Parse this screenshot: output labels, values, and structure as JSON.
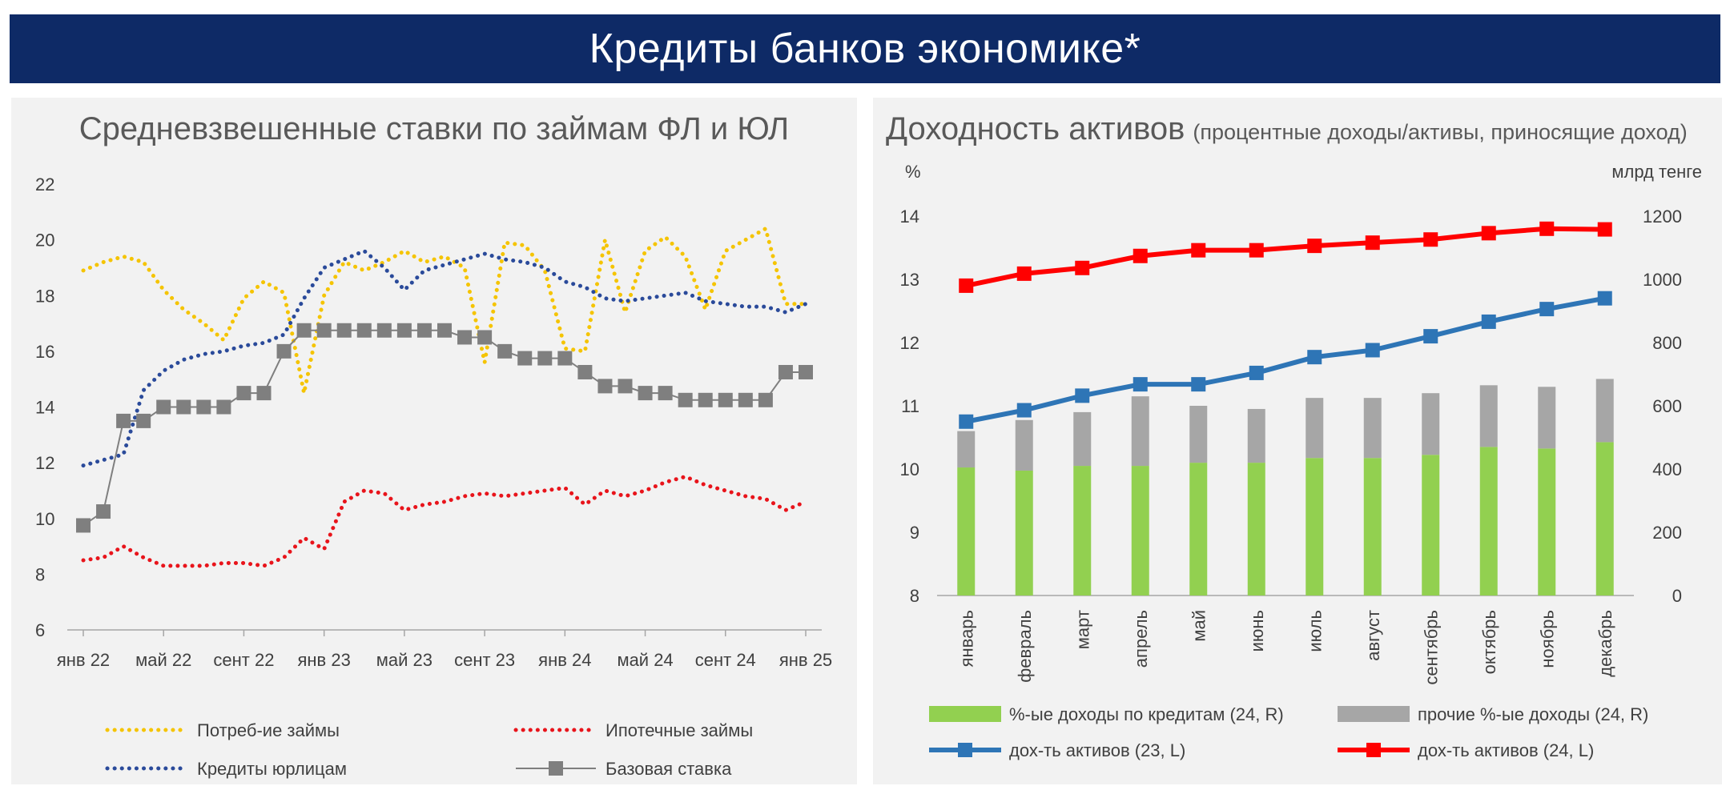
{
  "page": {
    "title": "Кредиты банков экономике*"
  },
  "chart_data": [
    {
      "type": "line",
      "title": "Средневзвешенные ставки по займам ФЛ и ЮЛ",
      "ylim": [
        6,
        22
      ],
      "yticks": [
        6,
        8,
        10,
        12,
        14,
        16,
        18,
        20,
        22
      ],
      "x_tick_labels": [
        "янв 22",
        "май 22",
        "сент 22",
        "янв 23",
        "май 23",
        "сент 23",
        "янв 24",
        "май 24",
        "сент 24",
        "янв 25"
      ],
      "x_tick_positions": [
        0,
        4,
        8,
        12,
        16,
        20,
        24,
        28,
        32,
        36
      ],
      "grid": "none",
      "legend": "bottom",
      "series": [
        {
          "name": "Потреб-ие займы",
          "color": "#f5c400",
          "style": "dotted",
          "values": [
            18.9,
            19.2,
            19.4,
            19.2,
            18.2,
            17.5,
            17.0,
            16.4,
            17.9,
            18.5,
            18.1,
            14.5,
            18.0,
            19.2,
            18.9,
            19.2,
            19.6,
            19.2,
            19.4,
            19.0,
            15.6,
            19.9,
            19.8,
            18.9,
            16.1,
            16.0,
            20.0,
            17.4,
            19.6,
            20.1,
            19.4,
            17.5,
            19.6,
            20.0,
            20.4,
            17.7,
            17.7
          ]
        },
        {
          "name": "Ипотечные займы",
          "color": "#e8141b",
          "style": "dotted",
          "values": [
            8.5,
            8.6,
            9.0,
            8.6,
            8.3,
            8.3,
            8.3,
            8.4,
            8.4,
            8.3,
            8.6,
            9.3,
            8.9,
            10.6,
            11.0,
            10.9,
            10.3,
            10.5,
            10.6,
            10.8,
            10.9,
            10.8,
            10.9,
            11.0,
            11.1,
            10.5,
            11.0,
            10.8,
            11.0,
            11.3,
            11.5,
            11.2,
            11.0,
            10.8,
            10.7,
            10.3,
            10.6
          ]
        },
        {
          "name": "Кредиты юрлицам",
          "color": "#2a4a9a",
          "style": "dotted",
          "values": [
            11.9,
            12.1,
            12.3,
            14.6,
            15.3,
            15.7,
            15.9,
            16.0,
            16.2,
            16.3,
            16.6,
            17.9,
            19.0,
            19.3,
            19.6,
            19.0,
            18.2,
            18.9,
            19.1,
            19.3,
            19.5,
            19.3,
            19.2,
            19.0,
            18.5,
            18.3,
            17.9,
            17.8,
            17.9,
            18.0,
            18.1,
            17.8,
            17.7,
            17.6,
            17.6,
            17.4,
            17.7
          ]
        },
        {
          "name": "Базовая ставка",
          "color": "#7f7f7f",
          "style": "line-square",
          "points": [
            [
              0,
              9.75
            ],
            [
              1,
              10.25
            ],
            [
              2,
              13.5
            ],
            [
              3,
              13.5
            ],
            [
              4,
              14.0
            ],
            [
              5,
              14.0
            ],
            [
              6,
              14.0
            ],
            [
              7,
              14.0
            ],
            [
              8,
              14.5
            ],
            [
              9,
              14.5
            ],
            [
              10,
              16.0
            ],
            [
              11,
              16.75
            ],
            [
              12,
              16.75
            ],
            [
              13,
              16.75
            ],
            [
              14,
              16.75
            ],
            [
              15,
              16.75
            ],
            [
              16,
              16.75
            ],
            [
              17,
              16.75
            ],
            [
              18,
              16.75
            ],
            [
              19,
              16.5
            ],
            [
              20,
              16.5
            ],
            [
              21,
              16.0
            ],
            [
              22,
              15.75
            ],
            [
              23,
              15.75
            ],
            [
              24,
              15.75
            ],
            [
              25,
              15.25
            ],
            [
              26,
              14.75
            ],
            [
              27,
              14.75
            ],
            [
              28,
              14.5
            ],
            [
              29,
              14.5
            ],
            [
              30,
              14.25
            ],
            [
              31,
              14.25
            ],
            [
              32,
              14.25
            ],
            [
              33,
              14.25
            ],
            [
              34,
              14.25
            ],
            [
              35,
              15.25
            ],
            [
              36,
              15.25
            ]
          ]
        }
      ]
    },
    {
      "type": "bar",
      "title": "Доходность активов",
      "subtitle": "(процентные доходы/активы, приносящие доход)",
      "ylabel_left": "%",
      "ylabel_right": "млрд тенге",
      "ylim_left": [
        8,
        14
      ],
      "ylim_right": [
        0,
        1200
      ],
      "yticks_left": [
        8,
        9,
        10,
        11,
        12,
        13,
        14
      ],
      "yticks_right": [
        0,
        200,
        400,
        600,
        800,
        1000,
        1200
      ],
      "categories": [
        "январь",
        "февраль",
        "март",
        "апрель",
        "май",
        "июнь",
        "июль",
        "август",
        "сентябрь",
        "октябрь",
        "ноябрь",
        "декабрь"
      ],
      "legend": "bottom",
      "bars_stacked": [
        {
          "name": "%-ые доходы по кредитам (24, R)",
          "color": "#92d050",
          "axis": "right",
          "values": [
            405,
            395,
            410,
            410,
            420,
            420,
            435,
            435,
            445,
            470,
            465,
            485
          ]
        },
        {
          "name": "прочие %-ые доходы (24, R)",
          "color": "#a6a6a6",
          "axis": "right",
          "values": [
            115,
            160,
            170,
            220,
            180,
            170,
            190,
            190,
            195,
            195,
            195,
            200
          ]
        }
      ],
      "lines": [
        {
          "name": "дох-ть активов (23, L)",
          "color": "#2e75b6",
          "axis": "left",
          "values": [
            10.75,
            10.93,
            11.16,
            11.34,
            11.34,
            11.52,
            11.77,
            11.88,
            12.1,
            12.33,
            12.53,
            12.7
          ]
        },
        {
          "name": "дох-ть активов (24, L)",
          "color": "#ff0000",
          "axis": "left",
          "values": [
            12.9,
            13.09,
            13.18,
            13.37,
            13.46,
            13.46,
            13.53,
            13.58,
            13.63,
            13.73,
            13.8,
            13.79
          ]
        }
      ]
    }
  ]
}
